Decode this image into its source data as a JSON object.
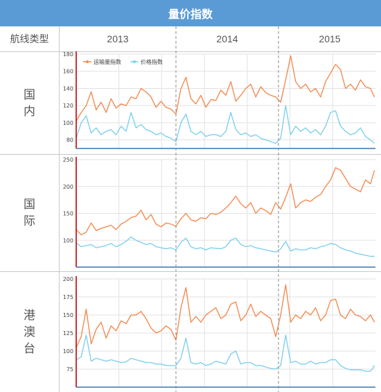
{
  "title": "量价指数",
  "header": {
    "route_type_label": "航线类型",
    "years": [
      "2013",
      "2014",
      "2015"
    ]
  },
  "rows": [
    {
      "label_lines": [
        "国",
        "内"
      ]
    },
    {
      "label_lines": [
        "国",
        "际"
      ]
    },
    {
      "label_lines": [
        "港",
        "澳",
        "台"
      ]
    }
  ],
  "colors": {
    "volume": "#f28c52",
    "price": "#7fd0ec",
    "title_bg": "#5b9bd5",
    "grid": "#e2e2e2",
    "axis": "#c00000"
  },
  "chart_data": [
    {
      "type": "line",
      "region": "国内",
      "ylim": [
        70,
        180
      ],
      "yticks": [
        80,
        100,
        120,
        140,
        160,
        180
      ],
      "legend": [
        "运输量指数",
        "价格指数"
      ],
      "x_range": [
        2013,
        2016
      ],
      "series": [
        {
          "name": "运输量指数",
          "key": "volume",
          "x": [
            2013.0,
            2013.05,
            2013.1,
            2013.15,
            2013.2,
            2013.25,
            2013.3,
            2013.35,
            2013.4,
            2013.45,
            2013.5,
            2013.55,
            2013.6,
            2013.65,
            2013.7,
            2013.75,
            2013.8,
            2013.85,
            2013.9,
            2013.95,
            2014.0,
            2014.05,
            2014.1,
            2014.15,
            2014.2,
            2014.25,
            2014.3,
            2014.35,
            2014.4,
            2014.45,
            2014.5,
            2014.55,
            2014.6,
            2014.65,
            2014.7,
            2014.75,
            2014.8,
            2014.85,
            2014.9,
            2014.95,
            2015.0,
            2015.05,
            2015.1,
            2015.15,
            2015.2,
            2015.25,
            2015.3,
            2015.35,
            2015.4,
            2015.45,
            2015.5,
            2015.55,
            2015.6,
            2015.65,
            2015.7,
            2015.75,
            2015.8,
            2015.85,
            2015.9,
            2015.95,
            2015.99
          ],
          "values": [
            102,
            112,
            120,
            136,
            115,
            124,
            112,
            128,
            117,
            122,
            120,
            130,
            128,
            140,
            136,
            130,
            118,
            125,
            118,
            116,
            110,
            140,
            153,
            128,
            122,
            132,
            118,
            127,
            126,
            138,
            132,
            148,
            125,
            132,
            140,
            145,
            130,
            142,
            135,
            132,
            130,
            124,
            150,
            178,
            148,
            140,
            145,
            136,
            140,
            130,
            148,
            158,
            168,
            162,
            140,
            145,
            138,
            150,
            142,
            140,
            130
          ]
        },
        {
          "name": "价格指数",
          "key": "price",
          "x": [
            2013.0,
            2013.05,
            2013.1,
            2013.15,
            2013.2,
            2013.25,
            2013.3,
            2013.35,
            2013.4,
            2013.45,
            2013.5,
            2013.55,
            2013.6,
            2013.65,
            2013.7,
            2013.75,
            2013.8,
            2013.85,
            2013.9,
            2013.95,
            2014.0,
            2014.05,
            2014.1,
            2014.15,
            2014.2,
            2014.25,
            2014.3,
            2014.35,
            2014.4,
            2014.45,
            2014.5,
            2014.55,
            2014.6,
            2014.65,
            2014.7,
            2014.75,
            2014.8,
            2014.85,
            2014.9,
            2014.95,
            2015.0,
            2015.05,
            2015.1,
            2015.15,
            2015.2,
            2015.25,
            2015.3,
            2015.35,
            2015.4,
            2015.45,
            2015.5,
            2015.55,
            2015.6,
            2015.65,
            2015.7,
            2015.75,
            2015.8,
            2015.85,
            2015.9,
            2015.95,
            2015.99
          ],
          "values": [
            82,
            100,
            108,
            88,
            94,
            86,
            90,
            92,
            86,
            96,
            90,
            112,
            94,
            98,
            92,
            90,
            86,
            88,
            84,
            82,
            78,
            100,
            110,
            90,
            86,
            90,
            84,
            86,
            86,
            84,
            90,
            112,
            92,
            86,
            88,
            84,
            86,
            82,
            80,
            78,
            76,
            82,
            120,
            86,
            96,
            90,
            94,
            88,
            92,
            86,
            96,
            112,
            114,
            96,
            90,
            86,
            88,
            94,
            84,
            80,
            76
          ]
        }
      ]
    },
    {
      "type": "line",
      "region": "国际",
      "ylim": [
        50,
        250
      ],
      "yticks": [
        100,
        150,
        200,
        250
      ],
      "legend": [],
      "x_range": [
        2013,
        2016
      ],
      "series": [
        {
          "name": "运输量指数",
          "key": "volume",
          "x": [
            2013.0,
            2013.05,
            2013.1,
            2013.15,
            2013.2,
            2013.25,
            2013.3,
            2013.35,
            2013.4,
            2013.45,
            2013.5,
            2013.55,
            2013.6,
            2013.65,
            2013.7,
            2013.75,
            2013.8,
            2013.85,
            2013.9,
            2013.95,
            2014.0,
            2014.05,
            2014.1,
            2014.15,
            2014.2,
            2014.25,
            2014.3,
            2014.35,
            2014.4,
            2014.45,
            2014.5,
            2014.55,
            2014.6,
            2014.65,
            2014.7,
            2014.75,
            2014.8,
            2014.85,
            2014.9,
            2014.95,
            2015.0,
            2015.05,
            2015.1,
            2015.15,
            2015.2,
            2015.25,
            2015.3,
            2015.35,
            2015.4,
            2015.45,
            2015.5,
            2015.55,
            2015.6,
            2015.65,
            2015.7,
            2015.75,
            2015.8,
            2015.85,
            2015.9,
            2015.95,
            2015.99
          ],
          "values": [
            120,
            110,
            115,
            132,
            118,
            122,
            125,
            128,
            120,
            130,
            135,
            142,
            145,
            156,
            138,
            148,
            130,
            125,
            132,
            130,
            126,
            140,
            150,
            138,
            135,
            142,
            140,
            150,
            148,
            152,
            160,
            170,
            182,
            168,
            160,
            170,
            150,
            160,
            155,
            148,
            170,
            158,
            180,
            205,
            160,
            170,
            175,
            172,
            180,
            185,
            200,
            212,
            235,
            230,
            215,
            200,
            195,
            190,
            212,
            205,
            230
          ]
        },
        {
          "name": "价格指数",
          "key": "price",
          "x": [
            2013.0,
            2013.05,
            2013.1,
            2013.15,
            2013.2,
            2013.25,
            2013.3,
            2013.35,
            2013.4,
            2013.45,
            2013.5,
            2013.55,
            2013.6,
            2013.65,
            2013.7,
            2013.75,
            2013.8,
            2013.85,
            2013.9,
            2013.95,
            2014.0,
            2014.05,
            2014.1,
            2014.15,
            2014.2,
            2014.25,
            2014.3,
            2014.35,
            2014.4,
            2014.45,
            2014.5,
            2014.55,
            2014.6,
            2014.65,
            2014.7,
            2014.75,
            2014.8,
            2014.85,
            2014.9,
            2014.95,
            2015.0,
            2015.05,
            2015.1,
            2015.15,
            2015.2,
            2015.25,
            2015.3,
            2015.35,
            2015.4,
            2015.45,
            2015.5,
            2015.55,
            2015.6,
            2015.65,
            2015.7,
            2015.75,
            2015.8,
            2015.85,
            2015.9,
            2015.95,
            2015.99
          ],
          "values": [
            95,
            88,
            90,
            92,
            86,
            88,
            90,
            94,
            88,
            92,
            98,
            106,
            100,
            96,
            92,
            94,
            88,
            86,
            84,
            86,
            82,
            96,
            104,
            88,
            84,
            86,
            82,
            86,
            85,
            84,
            88,
            100,
            104,
            92,
            88,
            90,
            86,
            84,
            82,
            80,
            78,
            84,
            98,
            80,
            84,
            82,
            82,
            86,
            84,
            88,
            90,
            94,
            92,
            86,
            82,
            80,
            76,
            74,
            72,
            70,
            70
          ]
        }
      ]
    },
    {
      "type": "line",
      "region": "港澳台",
      "ylim": [
        50,
        200
      ],
      "yticks": [
        75,
        100,
        125,
        150,
        175,
        200
      ],
      "legend": [],
      "x_range": [
        2013,
        2016
      ],
      "series": [
        {
          "name": "运输量指数",
          "key": "volume",
          "x": [
            2013.0,
            2013.05,
            2013.1,
            2013.15,
            2013.2,
            2013.25,
            2013.3,
            2013.35,
            2013.4,
            2013.45,
            2013.5,
            2013.55,
            2013.6,
            2013.65,
            2013.7,
            2013.75,
            2013.8,
            2013.85,
            2013.9,
            2013.95,
            2014.0,
            2014.05,
            2014.1,
            2014.15,
            2014.2,
            2014.25,
            2014.3,
            2014.35,
            2014.4,
            2014.45,
            2014.5,
            2014.55,
            2014.6,
            2014.65,
            2014.7,
            2014.75,
            2014.8,
            2014.85,
            2014.9,
            2014.95,
            2015.0,
            2015.05,
            2015.1,
            2015.15,
            2015.2,
            2015.25,
            2015.3,
            2015.35,
            2015.4,
            2015.45,
            2015.5,
            2015.55,
            2015.6,
            2015.65,
            2015.7,
            2015.75,
            2015.8,
            2015.85,
            2015.9,
            2015.95,
            2015.99
          ],
          "values": [
            105,
            120,
            158,
            110,
            130,
            140,
            118,
            135,
            128,
            142,
            138,
            150,
            150,
            155,
            145,
            132,
            125,
            128,
            135,
            130,
            115,
            160,
            188,
            140,
            148,
            140,
            150,
            155,
            160,
            145,
            150,
            165,
            168,
            142,
            150,
            165,
            148,
            155,
            150,
            145,
            120,
            150,
            192,
            140,
            150,
            145,
            155,
            150,
            160,
            142,
            150,
            170,
            172,
            150,
            145,
            158,
            150,
            148,
            142,
            150,
            140
          ]
        },
        {
          "name": "价格指数",
          "key": "price",
          "x": [
            2013.0,
            2013.05,
            2013.1,
            2013.15,
            2013.2,
            2013.25,
            2013.3,
            2013.35,
            2013.4,
            2013.45,
            2013.5,
            2013.55,
            2013.6,
            2013.65,
            2013.7,
            2013.75,
            2013.8,
            2013.85,
            2013.9,
            2013.95,
            2014.0,
            2014.05,
            2014.1,
            2014.15,
            2014.2,
            2014.25,
            2014.3,
            2014.35,
            2014.4,
            2014.45,
            2014.5,
            2014.55,
            2014.6,
            2014.65,
            2014.7,
            2014.75,
            2014.8,
            2014.85,
            2014.9,
            2014.95,
            2015.0,
            2015.05,
            2015.1,
            2015.15,
            2015.2,
            2015.25,
            2015.3,
            2015.35,
            2015.4,
            2015.45,
            2015.5,
            2015.55,
            2015.6,
            2015.65,
            2015.7,
            2015.75,
            2015.8,
            2015.85,
            2015.9,
            2015.95,
            2015.99
          ],
          "values": [
            88,
            92,
            122,
            86,
            90,
            88,
            86,
            88,
            86,
            84,
            85,
            90,
            88,
            86,
            84,
            84,
            82,
            82,
            80,
            80,
            80,
            90,
            118,
            84,
            82,
            84,
            80,
            82,
            86,
            84,
            82,
            96,
            100,
            82,
            84,
            84,
            80,
            80,
            78,
            76,
            75,
            80,
            122,
            84,
            86,
            82,
            82,
            86,
            82,
            84,
            84,
            88,
            88,
            80,
            76,
            74,
            74,
            74,
            72,
            72,
            80
          ]
        }
      ]
    }
  ]
}
